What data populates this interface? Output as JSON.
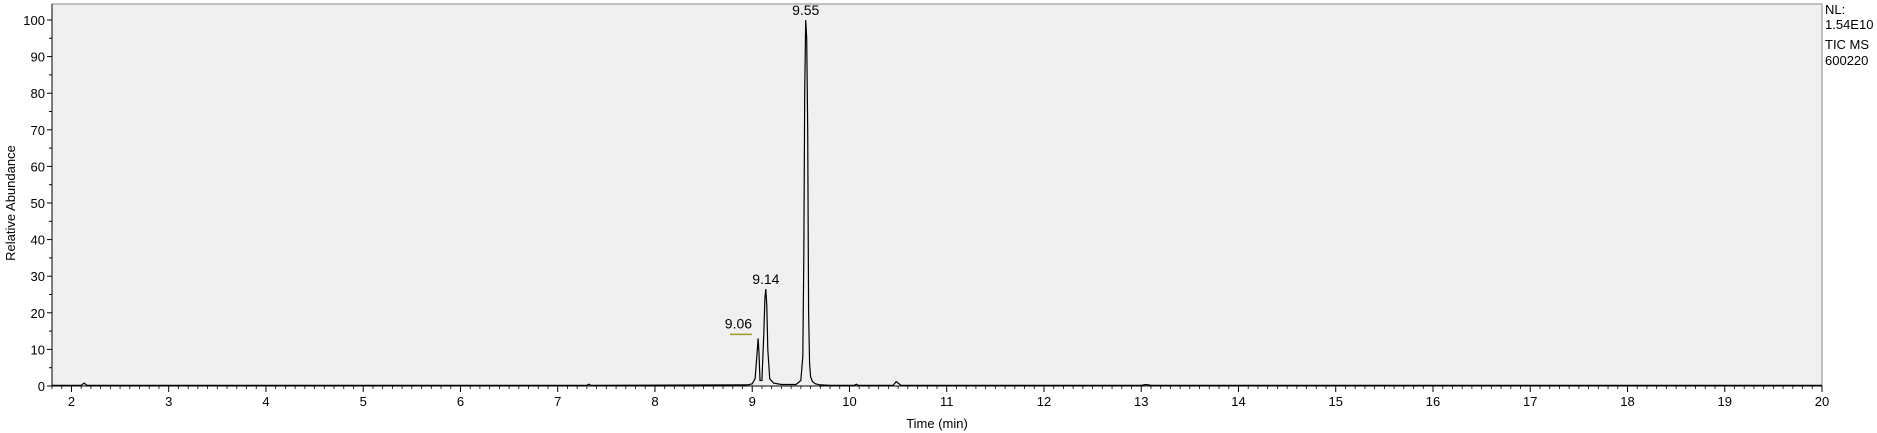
{
  "chart_data": {
    "type": "line",
    "xlabel": "Time (min)",
    "ylabel": "Relative Abundance",
    "xlim": [
      1.8,
      20
    ],
    "ylim": [
      0,
      100
    ],
    "x_ticks": [
      2,
      3,
      4,
      5,
      6,
      7,
      8,
      9,
      10,
      11,
      12,
      13,
      14,
      15,
      16,
      17,
      18,
      19,
      20
    ],
    "y_ticks": [
      0,
      10,
      20,
      30,
      40,
      50,
      60,
      70,
      80,
      90,
      100
    ],
    "grid": false,
    "series": [
      {
        "x": [
          1.8,
          2.1,
          2.13,
          2.16,
          7.3,
          7.32,
          7.34,
          8.95,
          9.0,
          9.03,
          9.05,
          9.06,
          9.07,
          9.08,
          9.1,
          9.12,
          9.13,
          9.14,
          9.15,
          9.16,
          9.18,
          9.22,
          9.3,
          9.45,
          9.5,
          9.52,
          9.53,
          9.54,
          9.55,
          9.56,
          9.57,
          9.58,
          9.59,
          9.6,
          9.62,
          9.65,
          9.7,
          9.8,
          10.05,
          10.07,
          10.09,
          10.45,
          10.48,
          10.5,
          10.53,
          13.0,
          13.05,
          13.1,
          20.0
        ],
        "y": [
          0.2,
          0.2,
          0.8,
          0.2,
          0.2,
          0.5,
          0.2,
          0.3,
          0.6,
          2.0,
          9.0,
          13.0,
          9.0,
          1.5,
          1.5,
          15.0,
          24.0,
          26.5,
          22.0,
          10.0,
          2.0,
          0.8,
          0.4,
          0.4,
          1.5,
          8.0,
          35.0,
          80.0,
          100.0,
          95.0,
          70.0,
          20.0,
          6.0,
          2.5,
          1.2,
          0.6,
          0.3,
          0.2,
          0.2,
          0.5,
          0.2,
          0.2,
          1.2,
          0.8,
          0.2,
          0.2,
          0.4,
          0.2,
          0.2
        ]
      }
    ],
    "peak_labels": [
      {
        "text": "9.55",
        "x": 9.55,
        "y": 100
      },
      {
        "text": "9.14",
        "x": 9.14,
        "y": 26.5
      },
      {
        "text": "9.06",
        "x": 9.06,
        "y": 13.0
      }
    ],
    "plot_background": "#f0f0f0",
    "trace_color": "#000000",
    "peak_marker_color": "#9a9a2a"
  },
  "info": {
    "lines": [
      "NL:",
      "1.54E10",
      "TIC  MS",
      "600220"
    ]
  }
}
